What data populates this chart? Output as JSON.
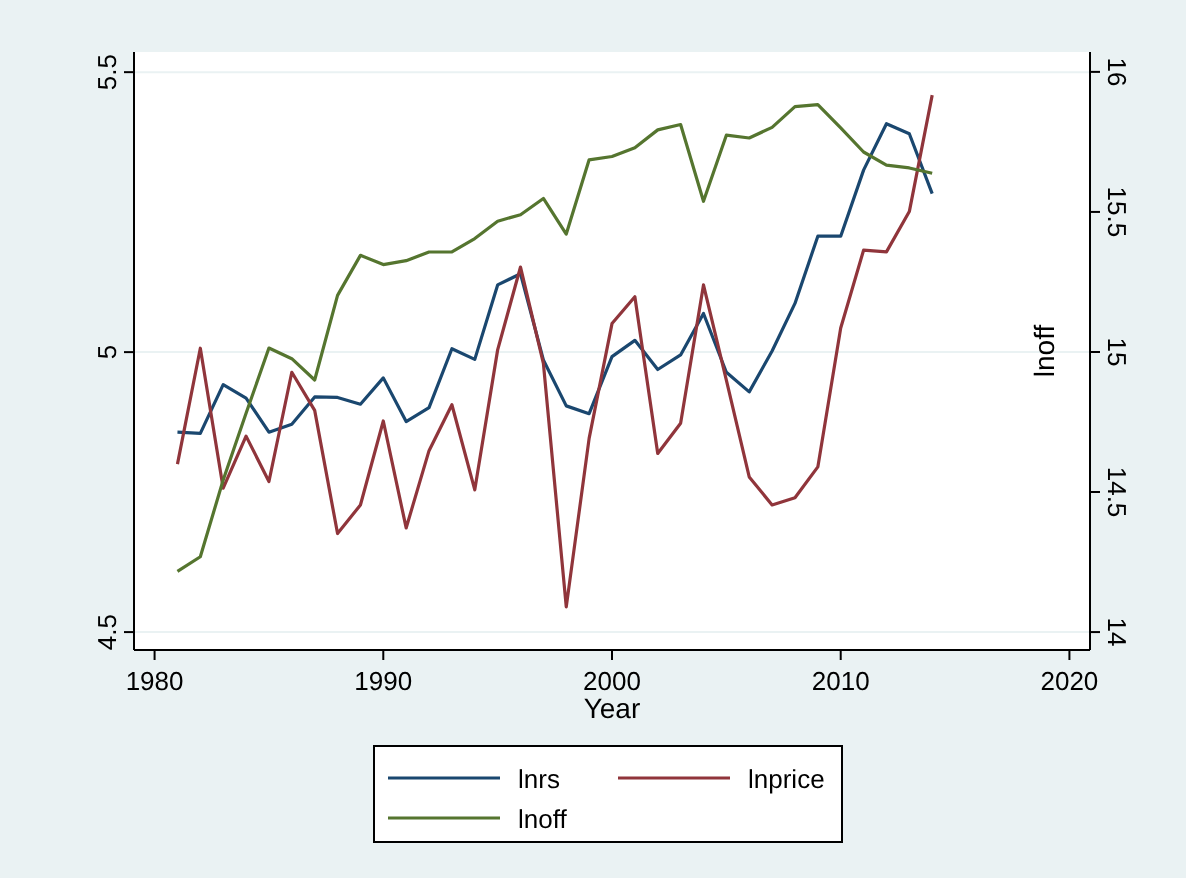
{
  "chart_data": {
    "type": "line",
    "xlabel": "Year",
    "y2label": "lnoff",
    "x": [
      1981,
      1982,
      1983,
      1984,
      1985,
      1986,
      1987,
      1988,
      1989,
      1990,
      1991,
      1992,
      1993,
      1994,
      1995,
      1996,
      1997,
      1998,
      1999,
      2000,
      2001,
      2002,
      2003,
      2004,
      2005,
      2006,
      2007,
      2008,
      2009,
      2010,
      2011,
      2012,
      2013,
      2014
    ],
    "series": [
      {
        "name": "lnrs",
        "color": "#1a476f",
        "values": [
          4.857,
          4.855,
          4.942,
          4.918,
          4.857,
          4.871,
          4.92,
          4.919,
          4.907,
          4.954,
          4.876,
          4.901,
          5.006,
          4.987,
          5.12,
          5.14,
          4.986,
          4.904,
          4.89,
          4.992,
          5.021,
          4.969,
          4.995,
          5.069,
          4.964,
          4.929,
          5.002,
          5.087,
          5.207,
          5.207,
          5.325,
          5.408,
          5.39,
          5.283
        ]
      },
      {
        "name": "lnprice",
        "color": "#90353b",
        "values": [
          4.8,
          5.007,
          4.757,
          4.85,
          4.769,
          4.964,
          4.896,
          4.676,
          4.727,
          4.877,
          4.686,
          4.824,
          4.906,
          4.754,
          5.004,
          5.152,
          4.98,
          4.545,
          4.846,
          5.051,
          5.099,
          4.819,
          4.873,
          5.12,
          4.95,
          4.777,
          4.727,
          4.74,
          4.795,
          5.043,
          5.182,
          5.179,
          5.251,
          5.459
        ]
      },
      {
        "name": "lnoff",
        "color": "#55752f",
        "axis": "y2",
        "values": [
          14.217,
          14.269,
          14.543,
          14.781,
          15.014,
          14.976,
          14.9,
          15.202,
          15.345,
          15.312,
          15.326,
          15.357,
          15.357,
          15.405,
          15.467,
          15.49,
          15.548,
          15.421,
          15.686,
          15.698,
          15.729,
          15.793,
          15.812,
          15.538,
          15.774,
          15.764,
          15.802,
          15.876,
          15.883,
          15.8,
          15.714,
          15.667,
          15.657,
          15.638
        ]
      }
    ],
    "xlim": [
      1979.1,
      2020.9
    ],
    "xticks": [
      1980,
      1990,
      2000,
      2010,
      2020
    ],
    "ylim": [
      4.468,
      5.536
    ],
    "yticks": [
      4.5,
      5,
      5.5
    ],
    "y2lim": [
      13.936,
      16.071
    ],
    "y2ticks": [
      14,
      14.5,
      15,
      15.5,
      16
    ],
    "grid": "y",
    "legend": "bottom",
    "marker": "none",
    "line_style": "solid"
  }
}
